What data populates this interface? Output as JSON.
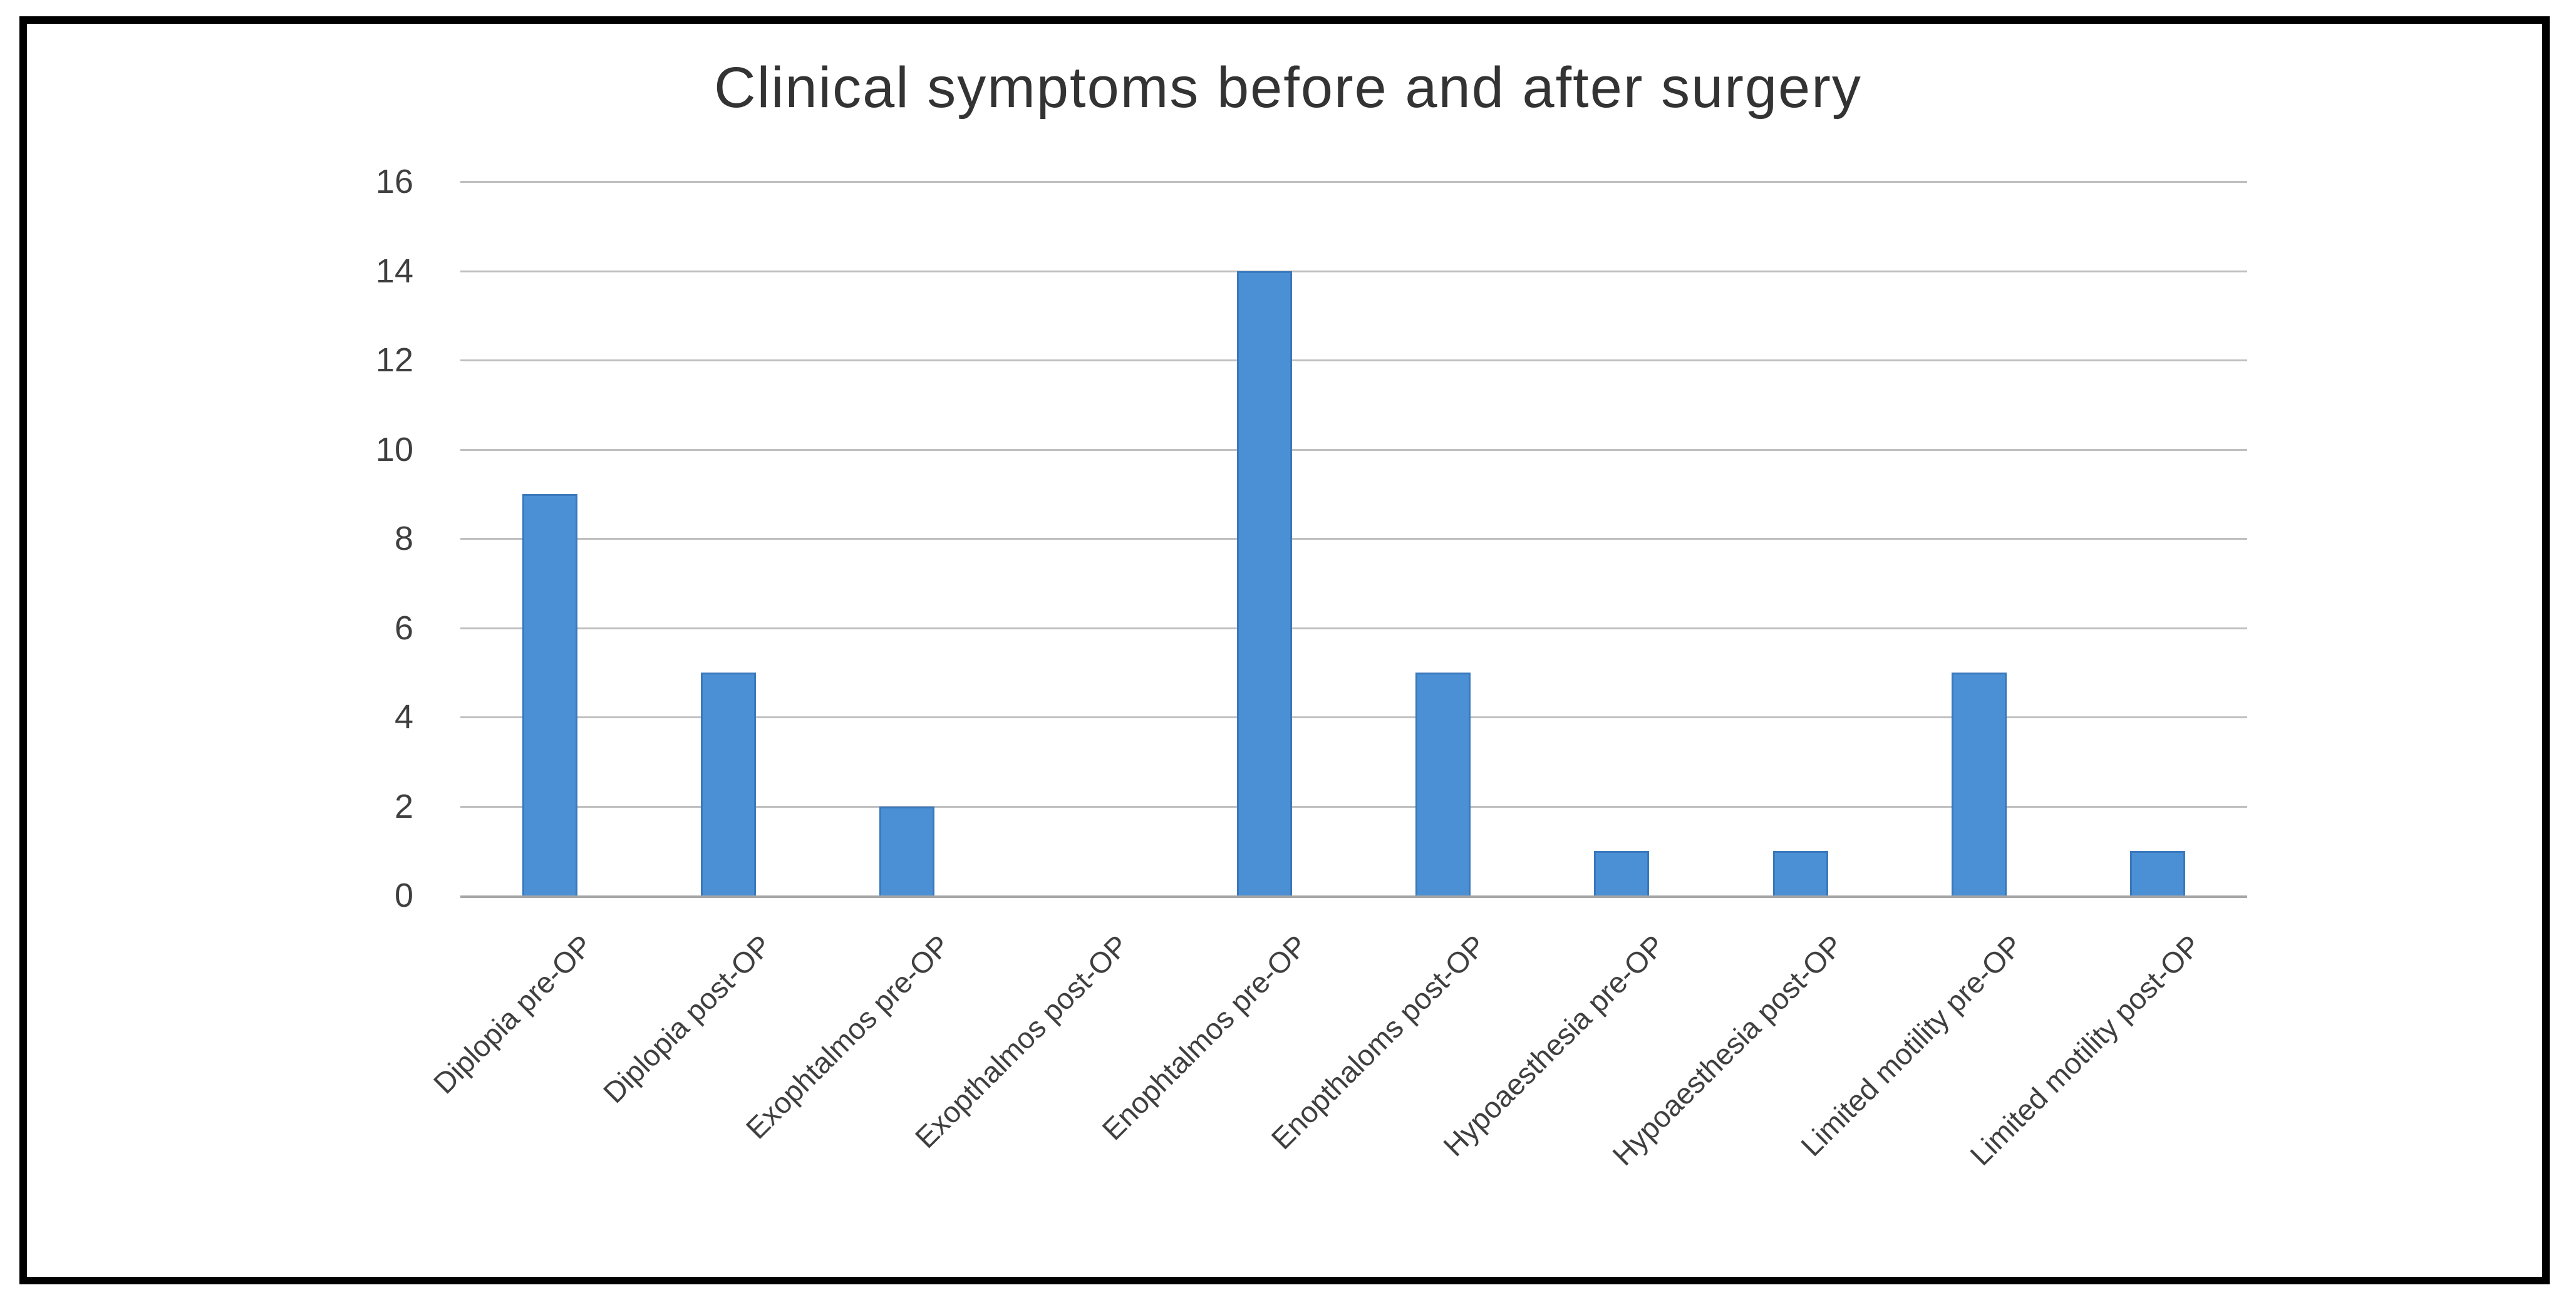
{
  "figure": {
    "background": "#ffffff",
    "border_color": "#000000"
  },
  "chart_data": {
    "type": "bar",
    "title": "Clinical symptoms before and after surgery",
    "categories": [
      "Diplopia pre-OP",
      "Diplopia post-OP",
      "Exophtalmos pre-OP",
      "Exopthalmos post-OP",
      "Enophtalmos pre-OP",
      "Enopthaloms post-OP",
      "Hypoaesthesia pre-OP",
      "Hypoaesthesia post-OP",
      "Limited motility pre-OP",
      "Limited motility post-OP"
    ],
    "values": [
      9,
      5,
      2,
      0,
      14,
      5,
      1,
      1,
      5,
      1
    ],
    "ylim": [
      0,
      16
    ],
    "yticks": [
      0,
      2,
      4,
      6,
      8,
      10,
      12,
      14,
      16
    ],
    "grid": true,
    "legend_position": "none",
    "xlabel": "",
    "ylabel": "",
    "bar_color": "#4B90D5",
    "bar_border_color": "#3A79BD",
    "gridline_color": "#BFBFBF",
    "axis_line_color": "#A6A6A6",
    "tick_text_color": "#3F3F3F",
    "title_color": "#333333"
  }
}
